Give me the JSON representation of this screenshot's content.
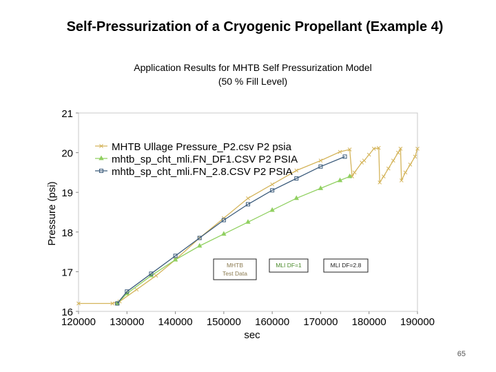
{
  "slide": {
    "title": "Self-Pressurization of a Cryogenic Propellant (Example 4)",
    "page_number": "65"
  },
  "chart_data": {
    "type": "line",
    "title_line1": "Application Results for MHTB Self Pressurization Model",
    "title_line2": "(50 % Fill Level)",
    "xlabel": "sec",
    "ylabel": "Pressure (psi)",
    "xlim": [
      120000,
      190000
    ],
    "ylim": [
      16,
      21
    ],
    "xticks": [
      120000,
      130000,
      140000,
      150000,
      160000,
      170000,
      180000,
      190000
    ],
    "yticks": [
      16,
      17,
      18,
      19,
      20,
      21
    ],
    "grid": false,
    "legend_position": "top-left",
    "series": [
      {
        "name": "MHTB Ullage Pressure_P2.csv P2 psia",
        "color": "#d4b45a",
        "marker": "x",
        "x": [
          120000,
          127000,
          128500,
          132000,
          136000,
          140000,
          145000,
          150000,
          155000,
          160000,
          165000,
          170000,
          174000,
          176000,
          176500,
          177000,
          178500,
          179000,
          180000,
          181000,
          182000,
          182200,
          183000,
          184000,
          185000,
          186000,
          186500,
          186700,
          187500,
          188500,
          189500,
          190000
        ],
        "y": [
          16.2,
          16.2,
          16.25,
          16.55,
          16.9,
          17.3,
          17.85,
          18.35,
          18.85,
          19.2,
          19.55,
          19.8,
          20.02,
          20.08,
          19.4,
          19.5,
          19.75,
          19.8,
          19.95,
          20.1,
          20.12,
          19.25,
          19.4,
          19.6,
          19.8,
          20.0,
          20.1,
          19.3,
          19.5,
          19.7,
          19.9,
          20.1
        ]
      },
      {
        "name": "mhtb_sp_cht_mli.FN_DF1.CSV P2   PSIA",
        "color": "#90d060",
        "marker": "triangle",
        "x": [
          128000,
          130000,
          135000,
          140000,
          145000,
          150000,
          155000,
          160000,
          165000,
          170000,
          174000,
          176000
        ],
        "y": [
          16.2,
          16.45,
          16.9,
          17.3,
          17.65,
          17.95,
          18.25,
          18.55,
          18.85,
          19.1,
          19.3,
          19.4
        ]
      },
      {
        "name": "mhtb_sp_cht_mli.FN_2.8.CSV P2   PSIA",
        "color": "#3a5a7a",
        "marker": "square",
        "x": [
          128000,
          130000,
          135000,
          140000,
          145000,
          150000,
          155000,
          160000,
          165000,
          170000,
          175000
        ],
        "y": [
          16.2,
          16.5,
          16.95,
          17.4,
          17.85,
          18.3,
          18.7,
          19.05,
          19.35,
          19.65,
          19.9
        ]
      }
    ],
    "annotations": [
      {
        "lines": [
          "MHTB",
          "Test Data"
        ],
        "color": "#8a7a50",
        "border": "#222222"
      },
      {
        "lines": [
          "MLI DF=1"
        ],
        "color": "#4a8a2a",
        "border": "#222222"
      },
      {
        "lines": [
          "MLI DF=2.8"
        ],
        "color": "#222222",
        "border": "#222222"
      }
    ]
  }
}
